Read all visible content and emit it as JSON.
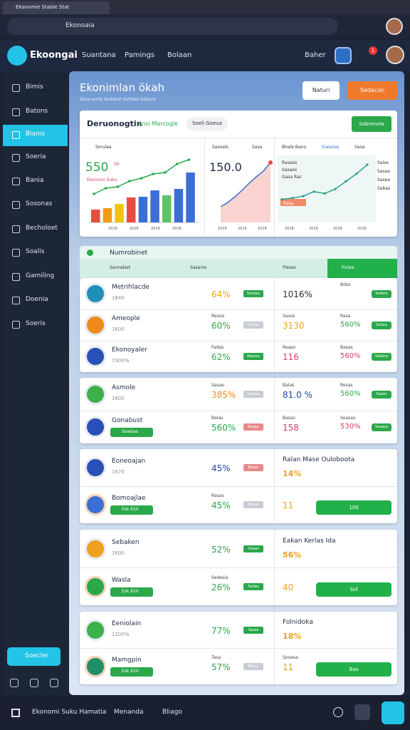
{
  "browser": {
    "tab": "Ekonomie Stabie Stat",
    "address": "Ekonoaia"
  },
  "header": {
    "brand": "Ekoongai",
    "nav": [
      "Suantana",
      "Pamings",
      "Bolaan"
    ],
    "user": "Baher",
    "badge": "1"
  },
  "sidebar": {
    "items": [
      "Bimis",
      "Batons",
      "Bianis",
      "Soeria",
      "Bania",
      "Sosonas",
      "Becholoet",
      "Soalis",
      "Gamiling",
      "Doenia",
      "Soeris"
    ],
    "active": 2,
    "button": "Soecler"
  },
  "page": {
    "title": "Ekonimlan ökah",
    "subtitle": "Desa amta kedobat dahlkes balouis",
    "buttons": [
      "Naturi",
      "Sedacon"
    ]
  },
  "overview": {
    "title": "Deruonogtin",
    "tab": "Ansi Marcogle",
    "filter": "Soeli Goeua",
    "action": "Sabrenola",
    "charts": [
      {
        "tab": "Smulaa",
        "value": "550",
        "unit": "Sb",
        "label": "Ekonomi Suku",
        "ylim": [
          0,
          100
        ],
        "bars": [
          18,
          20,
          26,
          35,
          36,
          45,
          38,
          47,
          70
        ],
        "bar_colors": [
          "#e74c3c",
          "#f39c12",
          "#f1c40f",
          "#e74c3c",
          "#3b6fd6",
          "#3b6fd6",
          "#5cc46a",
          "#3b6fd6",
          "#3b6fd6"
        ],
        "line": [
          40,
          48,
          50,
          58,
          62,
          68,
          70,
          82,
          88
        ],
        "xlabels": [
          "2019",
          "2016",
          "2018",
          "2018"
        ]
      },
      {
        "tab": "Sasoals",
        "filter": "Sasa",
        "value": "150.0",
        "ylim": [
          0,
          100
        ],
        "area": [
          22,
          28,
          36,
          45,
          55,
          64,
          72,
          84
        ],
        "xlabels": [
          "2019",
          "2016",
          "2018"
        ]
      },
      {
        "tab": "Bhale Bano",
        "tab2": "Siasalas",
        "filter": "Sasa",
        "ylim": [
          0,
          100
        ],
        "notes": [
          "Rasaso",
          "Sasaos",
          "Gasa Rac"
        ],
        "side": [
          "Salas",
          "Sasaa",
          "Sasea",
          "Sabas"
        ],
        "tag": "Rasa",
        "line": [
          36,
          38,
          41,
          48,
          45,
          52,
          64,
          76,
          90
        ],
        "xlabels": [
          "2018",
          "2016",
          "2018",
          "2018"
        ]
      }
    ]
  },
  "table": {
    "title": "Numrobinet",
    "columns": [
      "Sannalsst",
      "Sasaros",
      "Piesas",
      "Fiolaa"
    ]
  },
  "groups": [
    {
      "rows": [
        {
          "icon": "#1f8fb5",
          "name": "Metrihlacde",
          "sub": "1640",
          "pct": "64%",
          "pct_color": "#f0a020",
          "badge": "Soedas",
          "badge_color": "#2aa84a",
          "r_value": "1016%",
          "r_value_color": "#2a2f3a",
          "r_note2": "Bdso",
          "r_badge": "Sedaor"
        },
        {
          "icon": "#f08a1c",
          "name": "Ameople",
          "sub": "1600",
          "note": "Resoa",
          "pct": "60%",
          "pct_color": "#2aa84a",
          "badge": "Fasaas",
          "badge_color": "#c8ccd4",
          "r_note": "Sasos",
          "r_value": "3130",
          "r_value_color": "#f0a020",
          "r_note2": "Rasa",
          "r_pct": "560%",
          "r_pct_color": "#2aa84a",
          "r_badge": "Sedaa"
        },
        {
          "icon": "#2b4fb8",
          "name": "Ekonoyaler",
          "sub": "1900%",
          "note": "Fadas",
          "pct": "62%",
          "pct_color": "#2aa84a",
          "badge": "Raseas",
          "badge_color": "#2aa84a",
          "r_note": "Reaso",
          "r_value": "116",
          "r_value_color": "#d94060",
          "r_note2": "Basas",
          "r_pct": "560%",
          "r_pct_color": "#d94060",
          "r_badge": "Sedace"
        }
      ]
    },
    {
      "rows": [
        {
          "icon": "#3cb04a",
          "name": "Asmole",
          "sub": "1800",
          "note": "Sasao",
          "pct": "385%",
          "pct_color": "#f08a1c",
          "badge": "Soasas",
          "badge_color": "#c8ccd4",
          "r_note": "Balas",
          "r_value": "81.0 %",
          "r_value_color": "#2244aa",
          "r_note2": "Resas",
          "r_pct": "560%",
          "r_pct_color": "#2aa84a",
          "r_badge": "Sedas"
        },
        {
          "icon": "#2b4fb8",
          "name": "Gonabust",
          "pill": "Soasias",
          "note": "Balas",
          "pct": "560%",
          "pct_color": "#2aa84a",
          "badge": "Rasaa",
          "badge_color": "#e58a8a",
          "r_note": "Basas",
          "r_value": "158",
          "r_value_color": "#d94060",
          "r_note2": "Seasas",
          "r_pct": "530%",
          "r_pct_color": "#d94060",
          "r_badge": "Seaasa"
        }
      ]
    },
    {
      "rows": [
        {
          "icon": "#2b4fb8",
          "name": "Eoneoajan",
          "sub": "1670",
          "pct": "45%",
          "pct_color": "#2244aa",
          "badge": "Basas",
          "badge_color": "#e58a8a",
          "r_title": "Ralan Mase Ouloboota",
          "r_pct": "14%"
        },
        {
          "avatar": "#3b6fd6",
          "name": "Bomoajlae",
          "pill": "Esk 610",
          "note": "Rasas",
          "pct": "45%",
          "pct_color": "#2aa84a",
          "badge": "Basas",
          "badge_color": "#c8ccd4",
          "r_value": "11",
          "r_value_color": "#f0a020",
          "r_btn": "100"
        }
      ]
    },
    {
      "rows": [
        {
          "icon": "#f0a020",
          "name": "Sebaken",
          "sub": "1600",
          "pct": "52%",
          "pct_color": "#2aa84a",
          "badge": "Soaas",
          "badge_color": "#2aa84a",
          "r_title": "Eakan Kerlas Ida",
          "r_pct": "56%"
        },
        {
          "avatar": "#2aa84a",
          "name": "Wasla",
          "pill": "Esk 810",
          "note": "Sedesia",
          "pct": "26%",
          "pct_color": "#2aa84a",
          "badge": "Sedas",
          "badge_color": "#2aa84a",
          "r_value": "40",
          "r_value_color": "#f0a020",
          "r_btn": "Sid"
        }
      ]
    },
    {
      "rows": [
        {
          "icon": "#3cb04a",
          "name": "Eeniolain",
          "sub": "1200%",
          "pct": "77%",
          "pct_color": "#2aa84a",
          "badge": "Sasas",
          "badge_color": "#2aa84a",
          "r_title": "Folnidoka",
          "r_pct": "18%"
        },
        {
          "avatar": "#1f8f6a",
          "name": "Mamgpin",
          "pill": "Esk 610",
          "note": "Tasa",
          "pct": "57%",
          "pct_color": "#2aa84a",
          "badge": "Basas",
          "badge_color": "#c8ccd4",
          "r_note": "Sooasa",
          "r_value": "11",
          "r_value_color": "#f0a020",
          "r_btn": "Bas"
        }
      ]
    }
  ],
  "taskbar": {
    "items": [
      "Ekonomi Suku Hamatia",
      "Menanda",
      "Bliago"
    ]
  }
}
